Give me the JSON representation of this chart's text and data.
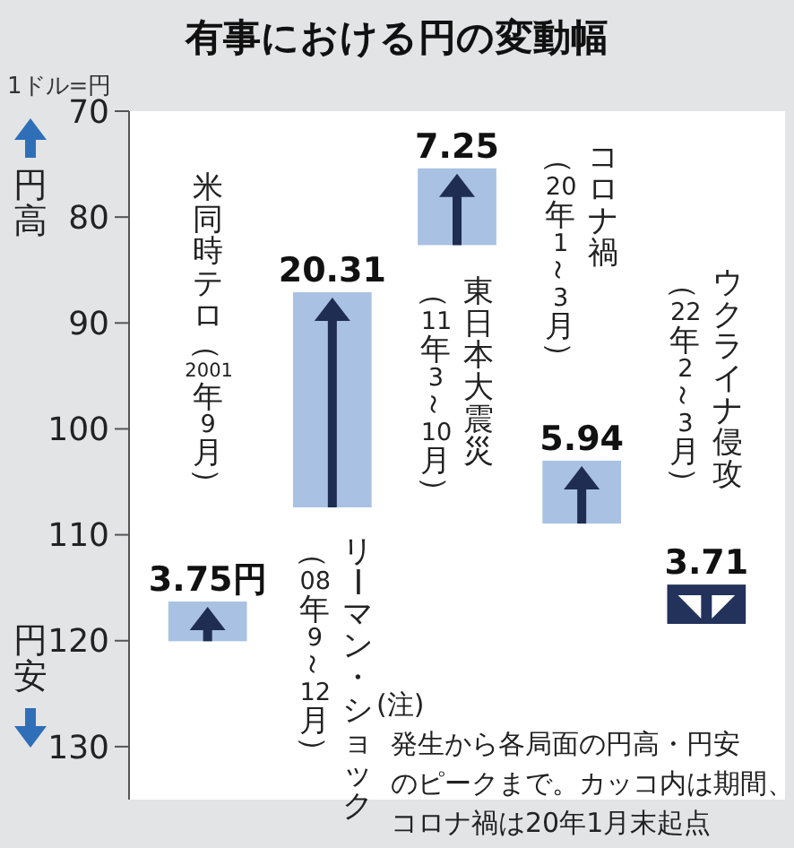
{
  "chart_data": {
    "type": "bar",
    "title": "有事における円の変動幅",
    "ylabel": "1ドル=円",
    "categories": [
      "米同時テロ（2001年9月）",
      "リーマン・ショック",
      "東日本大震災",
      "コロナ禍",
      "ウクライナ侵攻"
    ],
    "base": [
      116.3,
      87.1,
      75.4,
      103.0,
      114.7
    ],
    "values": [
      3.75,
      20.31,
      7.25,
      5.94,
      3.71
    ],
    "value_labels": [
      "3.75円",
      "20.31",
      "7.25",
      "5.94",
      "3.71"
    ],
    "colors": [
      "#a9c1e2",
      "#a9c1e2",
      "#a9c1e2",
      "#a9c1e2",
      "#22325a"
    ],
    "ylim": [
      135,
      70
    ],
    "yticks": [
      70,
      80,
      90,
      100,
      110,
      120,
      130
    ],
    "annotations": [
      "円高",
      "円安",
      "（08年9～12月）",
      "（11年3～10月）",
      "（20年1～3月）",
      "（22年2～3月）",
      "(注)",
      "発生から各局面の円高・円安",
      "のピークまで。カッコ内は期間、",
      "コロナ禍は20年1月末起点"
    ]
  }
}
